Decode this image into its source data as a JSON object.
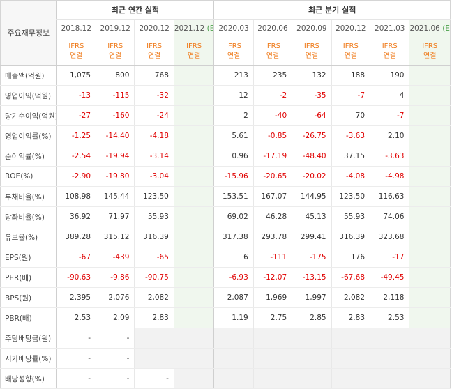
{
  "header": {
    "row_label": "주요재무정보",
    "annual_title": "최근 연간 실적",
    "quarter_title": "최근 분기 실적",
    "annual_periods": [
      "2018.12",
      "2019.12",
      "2020.12",
      "2021.12"
    ],
    "quarter_periods": [
      "2020.03",
      "2020.06",
      "2020.09",
      "2020.12",
      "2021.03",
      "2021.06"
    ],
    "estimate_mark": "(E)",
    "ifrs_line1": "IFRS",
    "ifrs_line2": "연결"
  },
  "rows": [
    {
      "label": "매출액(억원)",
      "annual": [
        "1,075",
        "800",
        "768",
        ""
      ],
      "quarter": [
        "213",
        "235",
        "132",
        "188",
        "190",
        ""
      ]
    },
    {
      "label": "영업이익(억원)",
      "annual": [
        "-13",
        "-115",
        "-32",
        ""
      ],
      "quarter": [
        "12",
        "-2",
        "-35",
        "-7",
        "4",
        ""
      ]
    },
    {
      "label": "당기순이익(억원)",
      "annual": [
        "-27",
        "-160",
        "-24",
        ""
      ],
      "quarter": [
        "2",
        "-40",
        "-64",
        "70",
        "-7",
        ""
      ]
    },
    {
      "label": "영업이익률(%)",
      "annual": [
        "-1.25",
        "-14.40",
        "-4.18",
        ""
      ],
      "quarter": [
        "5.61",
        "-0.85",
        "-26.75",
        "-3.63",
        "2.10",
        ""
      ]
    },
    {
      "label": "순이익률(%)",
      "annual": [
        "-2.54",
        "-19.94",
        "-3.14",
        ""
      ],
      "quarter": [
        "0.96",
        "-17.19",
        "-48.40",
        "37.15",
        "-3.63",
        ""
      ]
    },
    {
      "label": "ROE(%)",
      "annual": [
        "-2.90",
        "-19.80",
        "-3.04",
        ""
      ],
      "quarter": [
        "-15.96",
        "-20.65",
        "-20.02",
        "-4.08",
        "-4.98",
        ""
      ]
    },
    {
      "label": "부채비율(%)",
      "annual": [
        "108.98",
        "145.44",
        "123.50",
        ""
      ],
      "quarter": [
        "153.51",
        "167.07",
        "144.95",
        "123.50",
        "116.63",
        ""
      ]
    },
    {
      "label": "당좌비율(%)",
      "annual": [
        "36.92",
        "71.97",
        "55.93",
        ""
      ],
      "quarter": [
        "69.02",
        "46.28",
        "45.13",
        "55.93",
        "74.06",
        ""
      ]
    },
    {
      "label": "유보율(%)",
      "annual": [
        "389.28",
        "315.12",
        "316.39",
        ""
      ],
      "quarter": [
        "317.38",
        "293.78",
        "299.41",
        "316.39",
        "323.68",
        ""
      ]
    },
    {
      "label": "EPS(원)",
      "annual": [
        "-67",
        "-439",
        "-65",
        ""
      ],
      "quarter": [
        "6",
        "-111",
        "-175",
        "176",
        "-17",
        ""
      ]
    },
    {
      "label": "PER(배)",
      "annual": [
        "-90.63",
        "-9.86",
        "-90.75",
        ""
      ],
      "quarter": [
        "-6.93",
        "-12.07",
        "-13.15",
        "-67.68",
        "-49.45",
        ""
      ]
    },
    {
      "label": "BPS(원)",
      "annual": [
        "2,395",
        "2,076",
        "2,082",
        ""
      ],
      "quarter": [
        "2,087",
        "1,969",
        "1,997",
        "2,082",
        "2,118",
        ""
      ]
    },
    {
      "label": "PBR(배)",
      "annual": [
        "2.53",
        "2.09",
        "2.83",
        ""
      ],
      "quarter": [
        "1.19",
        "2.75",
        "2.85",
        "2.83",
        "2.53",
        ""
      ]
    },
    {
      "label": "주당배당금(원)",
      "annual": [
        "-",
        "-",
        "",
        ""
      ],
      "quarter": [
        "",
        "",
        "",
        "",
        "",
        ""
      ]
    },
    {
      "label": "시가배당률(%)",
      "annual": [
        "-",
        "-",
        "",
        ""
      ],
      "quarter": [
        "",
        "",
        "",
        "",
        "",
        ""
      ]
    },
    {
      "label": "배당성향(%)",
      "annual": [
        "-",
        "-",
        "-",
        ""
      ],
      "quarter": [
        "",
        "",
        "",
        "",
        "",
        ""
      ]
    }
  ],
  "colors": {
    "negative": "#e00000",
    "ifrs": "#ef7b1b",
    "estimate": "#4aa04a",
    "estimate_bg": "#f0f7ee",
    "empty_bg": "#f2f2f2"
  }
}
